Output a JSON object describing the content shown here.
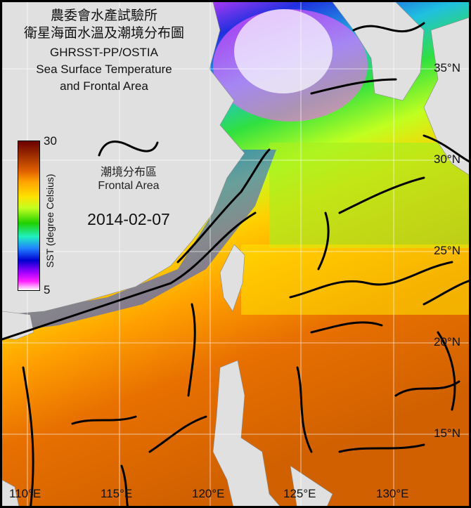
{
  "title": {
    "line1": "農委會水產試驗所",
    "line2": "衛星海面水溫及潮境分布圖",
    "line3": "GHRSST-PP/OSTIA",
    "line4": "Sea Surface Temperature",
    "line5": "and Frontal Area"
  },
  "legend": {
    "front_zh": "潮境分布區",
    "front_en": "Frontal Area",
    "colorbar_label": "SST (degree Celsius)",
    "colorbar_max": "30",
    "colorbar_min": "5",
    "colors": [
      "#6b0000",
      "#e06000",
      "#ffe000",
      "#20d000",
      "#20f0c0",
      "#0000d0",
      "#ff20ff",
      "#ffffff"
    ]
  },
  "date": "2014-02-07",
  "axes": {
    "lon_labels": [
      "110°E",
      "115°E",
      "120°E",
      "125°E",
      "130°E"
    ],
    "lat_labels": [
      "35°N",
      "30°N",
      "25°N",
      "20°N",
      "15°N"
    ]
  },
  "land_color": "#e0e0e0"
}
